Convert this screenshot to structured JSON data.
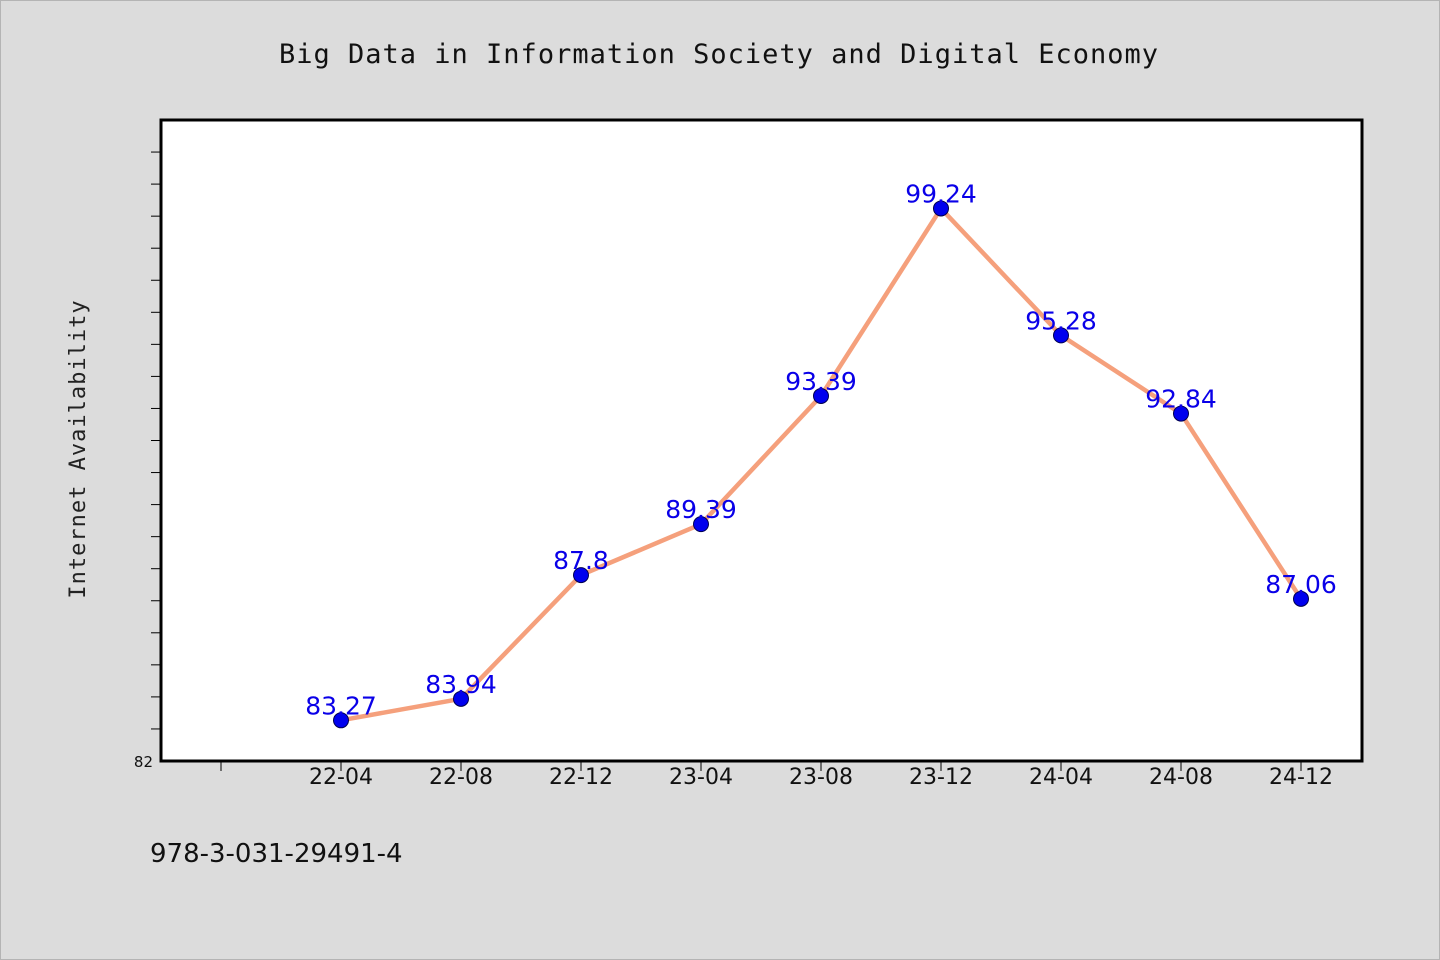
{
  "footer": {
    "isbn": "978-3-031-29491-4"
  },
  "chart_data": {
    "type": "line",
    "title": "Big Data in Information Society and Digital Economy",
    "ylabel": "Internet Availability",
    "xlabel": "",
    "categories": [
      "22-04",
      "22-08",
      "22-12",
      "23-04",
      "23-08",
      "23-12",
      "24-04",
      "24-08",
      "24-12"
    ],
    "series": [
      {
        "values": [
          83.27,
          83.94,
          87.8,
          89.39,
          93.39,
          99.24,
          95.28,
          92.84,
          87.06
        ],
        "labels": [
          "83.27",
          "83.94",
          "87.8",
          "89.39",
          "93.39",
          "99.24",
          "95.28",
          "92.84",
          "87.06"
        ]
      }
    ],
    "y_tick_labels": [
      "82"
    ],
    "ylim": [
      82,
      102
    ],
    "grid": false,
    "legend": "none",
    "colors": {
      "line": "#f5a07c",
      "marker": "#0000ee",
      "data_label": "#0a00e8",
      "plot_background": "#ffffff",
      "page_background": "#dcdcdc"
    }
  }
}
